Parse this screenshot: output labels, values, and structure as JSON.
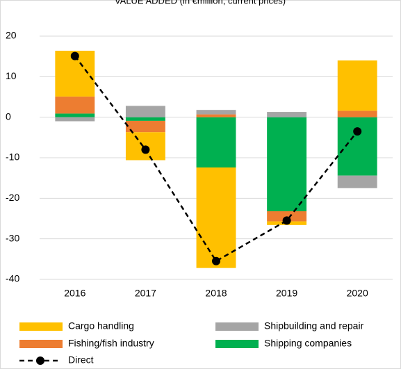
{
  "chart_data": {
    "type": "bar",
    "stacked": true,
    "title": "VALUE ADDED (in €million, current prices)",
    "categories": [
      "2016",
      "2017",
      "2018",
      "2019",
      "2020"
    ],
    "series": [
      {
        "name": "Shipping companies",
        "color": "#00b050",
        "values": [
          0.9,
          -0.9,
          -12.4,
          -23.2,
          -14.4
        ]
      },
      {
        "name": "Fishing/fish industry",
        "color": "#ed7d31",
        "values": [
          4.2,
          -2.8,
          0.7,
          -2.5,
          1.6
        ]
      },
      {
        "name": "Shipbuilding and repair",
        "color": "#a5a5a5",
        "values": [
          -1.0,
          2.8,
          1.1,
          1.3,
          -3.1
        ]
      },
      {
        "name": "Cargo handling",
        "color": "#ffc000",
        "values": [
          11.3,
          -6.9,
          -24.8,
          -0.9,
          12.4
        ]
      },
      {
        "name": "Direct",
        "type": "line",
        "color": "#000000",
        "dashed": true,
        "values": [
          15.1,
          -8.0,
          -35.5,
          -25.5,
          -3.5
        ]
      }
    ],
    "ylim": [
      -40,
      20
    ],
    "yticks": [
      -40,
      -30,
      -20,
      -10,
      0,
      10,
      20
    ],
    "grid": true
  }
}
